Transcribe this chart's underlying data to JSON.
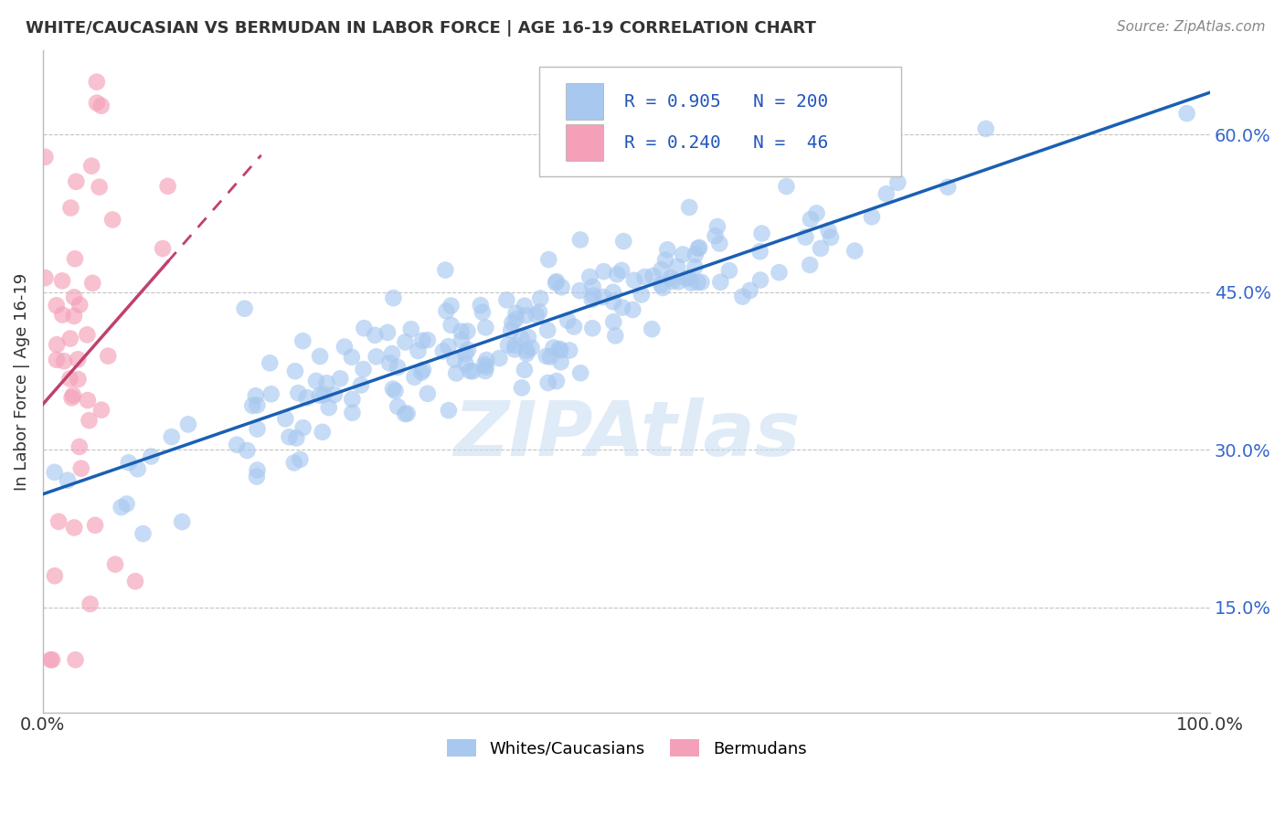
{
  "title": "WHITE/CAUCASIAN VS BERMUDAN IN LABOR FORCE | AGE 16-19 CORRELATION CHART",
  "source": "Source: ZipAtlas.com",
  "ylabel": "In Labor Force | Age 16-19",
  "xlim": [
    0.0,
    1.0
  ],
  "ylim": [
    0.05,
    0.68
  ],
  "yticks": [
    0.15,
    0.3,
    0.45,
    0.6
  ],
  "ytick_labels": [
    "15.0%",
    "30.0%",
    "45.0%",
    "60.0%"
  ],
  "xticks": [
    0.0,
    1.0
  ],
  "xtick_labels": [
    "0.0%",
    "100.0%"
  ],
  "blue_R": 0.905,
  "blue_N": 200,
  "pink_R": 0.24,
  "pink_N": 46,
  "blue_color": "#a8c8f0",
  "pink_color": "#f4a0b8",
  "blue_line_color": "#1a5fb4",
  "pink_line_color": "#c04070",
  "watermark": "ZIPAtlas",
  "legend_label_blue": "Whites/Caucasians",
  "legend_label_pink": "Bermudans",
  "background_color": "#ffffff",
  "grid_color": "#aaaaaa",
  "title_color": "#333333",
  "blue_seed": 42,
  "pink_seed": 99
}
